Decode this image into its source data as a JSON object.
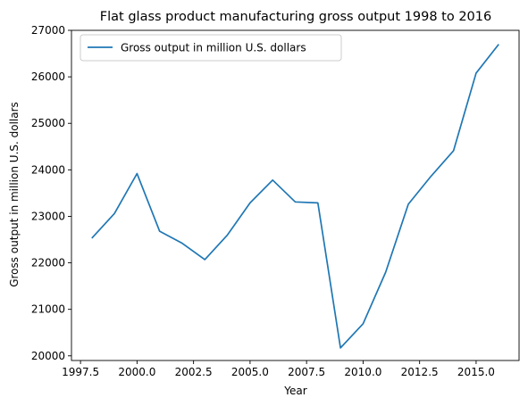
{
  "chart_data": {
    "type": "line",
    "title": "Flat glass product manufacturing gross output 1998 to 2016",
    "xlabel": "Year",
    "ylabel": "Gross output in million U.S. dollars",
    "xlim": [
      1997.1,
      2016.9
    ],
    "ylim": [
      19900,
      27000
    ],
    "xticks": [
      1997.5,
      2000.0,
      2002.5,
      2005.0,
      2007.5,
      2010.0,
      2012.5,
      2015.0
    ],
    "xtick_labels": [
      "1997.5",
      "2000.0",
      "2002.5",
      "2005.0",
      "2007.5",
      "2010.0",
      "2012.5",
      "2015.0"
    ],
    "yticks": [
      20000,
      21000,
      22000,
      23000,
      24000,
      25000,
      26000,
      27000
    ],
    "ytick_labels": [
      "20000",
      "21000",
      "22000",
      "23000",
      "24000",
      "25000",
      "26000",
      "27000"
    ],
    "grid": false,
    "legend_position": "top-left",
    "series": [
      {
        "name": "Gross output in million U.S. dollars",
        "color": "#1f77b4",
        "x": [
          1998,
          1999,
          2000,
          2001,
          2002,
          2003,
          2004,
          2005,
          2006,
          2007,
          2008,
          2009,
          2010,
          2011,
          2012,
          2013,
          2014,
          2015,
          2016
        ],
        "y": [
          22530,
          23060,
          23920,
          22680,
          22420,
          22070,
          22600,
          23290,
          23780,
          23310,
          23290,
          20170,
          20690,
          21800,
          23260,
          23860,
          24410,
          26080,
          26700
        ]
      }
    ]
  }
}
